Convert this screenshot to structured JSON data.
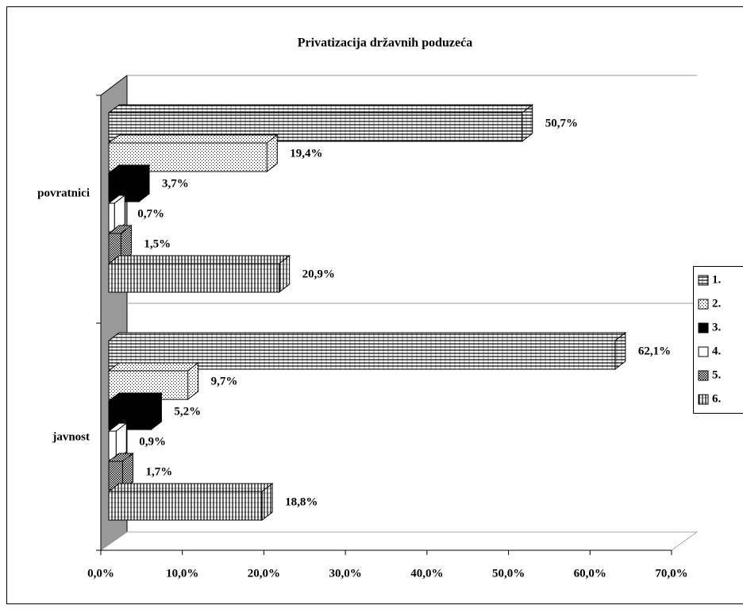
{
  "chart_data": {
    "type": "bar3d-horizontal",
    "title": "Privatizacija državnih poduzeća",
    "categories": [
      "povratnici",
      "javnost"
    ],
    "series": [
      {
        "name": "1.",
        "color": "#000000",
        "pattern": "horizontal",
        "values": [
          50.7,
          62.1
        ],
        "value_labels": [
          "50,7%",
          "62,1%"
        ]
      },
      {
        "name": "2.",
        "color": "#000000",
        "pattern": "dotted",
        "values": [
          19.4,
          9.7
        ],
        "value_labels": [
          "19,4%",
          "9,7%"
        ]
      },
      {
        "name": "3.",
        "color": "#000000",
        "pattern": "solid",
        "values": [
          3.7,
          5.2
        ],
        "value_labels": [
          "3,7%",
          "5,2%"
        ]
      },
      {
        "name": "4.",
        "color": "#ffffff",
        "pattern": "solid",
        "values": [
          0.7,
          0.9
        ],
        "value_labels": [
          "0,7%",
          "0,9%"
        ]
      },
      {
        "name": "5.",
        "color": "#000000",
        "pattern": "crosshatch",
        "values": [
          1.5,
          1.7
        ],
        "value_labels": [
          "1,5%",
          "1,7%"
        ]
      },
      {
        "name": "6.",
        "color": "#000000",
        "pattern": "vertical",
        "values": [
          20.9,
          18.8
        ],
        "value_labels": [
          "20,9%",
          "18,8%"
        ]
      }
    ],
    "xlim": [
      0,
      70
    ],
    "xticks": [
      {
        "value": 0,
        "label": "0,0%"
      },
      {
        "value": 10,
        "label": "10,0%"
      },
      {
        "value": 20,
        "label": "20,0%"
      },
      {
        "value": 30,
        "label": "30,0%"
      },
      {
        "value": 40,
        "label": "40,0%"
      },
      {
        "value": 50,
        "label": "50,0%"
      },
      {
        "value": 60,
        "label": "60,0%"
      },
      {
        "value": 70,
        "label": "70,0%"
      }
    ],
    "grid": true,
    "legend": "right"
  }
}
